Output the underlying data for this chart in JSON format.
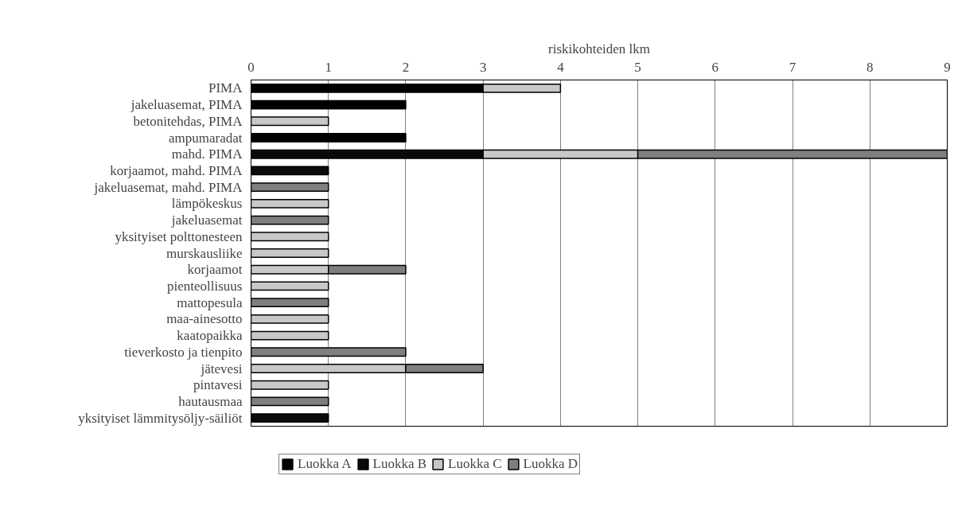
{
  "chart_data": {
    "type": "bar",
    "orientation": "horizontal",
    "stacked": true,
    "xlabel": "riskikohteiden lkm",
    "categories": [
      "PIMA",
      "jakeluasemat, PIMA",
      "betonitehdas, PIMA",
      "ampumaradat",
      "mahd. PIMA",
      "korjaamot, mahd. PIMA",
      "jakeluasemat, mahd. PIMA",
      "lämpökeskus",
      "jakeluasemat",
      "yksityiset polttonesteen",
      "murskausliike",
      "korjaamot",
      "pienteollisuus",
      "mattopesula",
      "maa-ainesotto",
      "kaatopaikka",
      "tieverkosto ja tienpito",
      "jätevesi",
      "pintavesi",
      "hautausmaa",
      "yksityiset lämmitysöljy-säiliöt"
    ],
    "series": [
      {
        "name": "Luokka A",
        "color": "#000000",
        "values": [
          3,
          2,
          null,
          2,
          null,
          null,
          null,
          null,
          null,
          null,
          null,
          null,
          null,
          null,
          null,
          null,
          null,
          null,
          null,
          null,
          null
        ]
      },
      {
        "name": "Luokka B",
        "color": "#0a0a0a",
        "values": [
          null,
          null,
          null,
          null,
          3,
          1,
          null,
          null,
          null,
          null,
          null,
          null,
          null,
          null,
          null,
          null,
          null,
          null,
          null,
          null,
          1
        ]
      },
      {
        "name": "Luokka C",
        "color": "#c8c8c8",
        "values": [
          1,
          null,
          1,
          null,
          2,
          null,
          null,
          1,
          null,
          1,
          1,
          1,
          1,
          null,
          1,
          1,
          null,
          2,
          1,
          null,
          null
        ]
      },
      {
        "name": "Luokka D",
        "color": "#7f7f7f",
        "values": [
          null,
          null,
          null,
          null,
          4,
          null,
          1,
          null,
          1,
          null,
          null,
          1,
          null,
          1,
          null,
          null,
          2,
          1,
          null,
          1,
          null
        ]
      }
    ],
    "xlim": [
      0,
      9
    ],
    "xticks": [
      0,
      1,
      2,
      3,
      4,
      5,
      6,
      7,
      8,
      9
    ],
    "grid": "x",
    "legend": "bottom"
  }
}
